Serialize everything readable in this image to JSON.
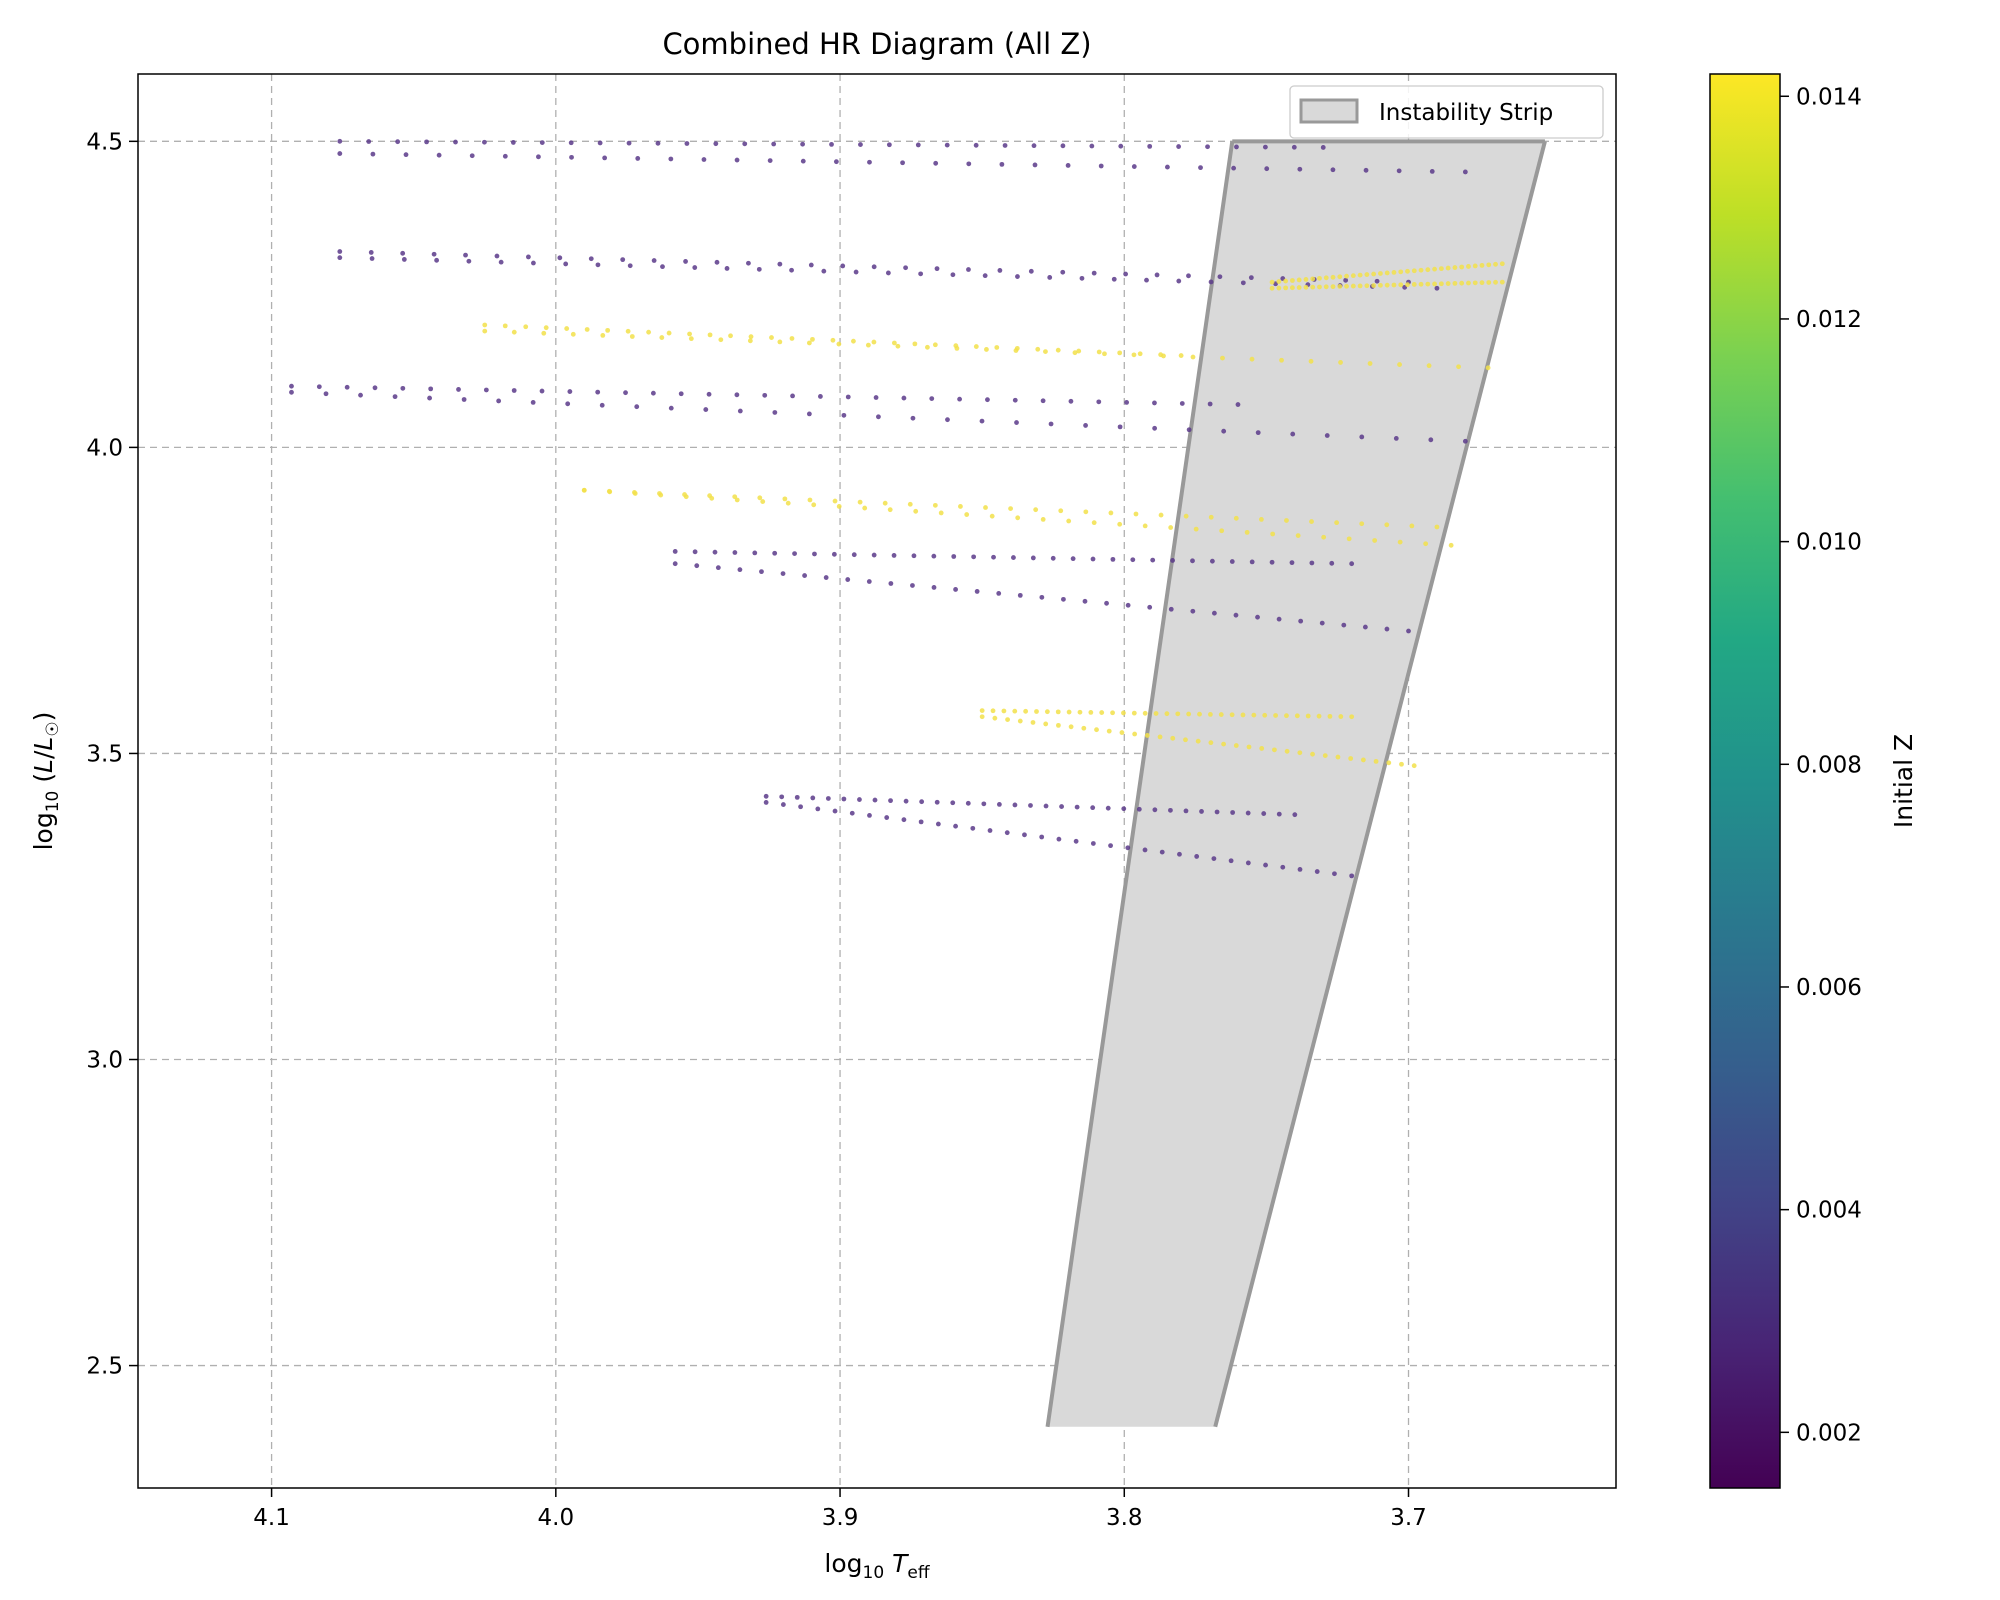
{
  "chart_data": {
    "type": "scatter",
    "title": "Combined HR Diagram (All Z)",
    "xlabel": "log₁₀ T_eff",
    "ylabel": "log₁₀ (L/L☉)",
    "x_inverted": true,
    "xlim": [
      4.147,
      3.627
    ],
    "ylim": [
      2.3,
      4.61
    ],
    "xticks": [
      4.1,
      4.0,
      3.9,
      3.8,
      3.7
    ],
    "yticks": [
      2.5,
      3.0,
      3.5,
      4.0,
      4.5
    ],
    "xtick_labels": [
      "4.1",
      "4.0",
      "3.9",
      "3.8",
      "3.7"
    ],
    "ytick_labels": [
      "2.5",
      "3.0",
      "3.5",
      "4.0",
      "4.5"
    ],
    "grid": true,
    "legend": {
      "label": "Instability Strip",
      "placement": "top-right"
    },
    "colorbar": {
      "label": "Initial Z",
      "min": 0.0015,
      "max": 0.0142,
      "ticks": [
        0.002,
        0.004,
        0.006,
        0.008,
        0.01,
        0.012,
        0.014
      ],
      "tick_labels": [
        "0.002",
        "0.004",
        "0.006",
        "0.008",
        "0.010",
        "0.012",
        "0.014"
      ],
      "colormap": "viridis"
    },
    "instability_strip": {
      "blue_edge": [
        [
          3.762,
          4.5
        ],
        [
          3.827,
          2.4
        ]
      ],
      "red_edge": [
        [
          3.652,
          4.5
        ],
        [
          3.768,
          2.4
        ]
      ],
      "fill_color": "#d9d9d9",
      "edge_color": "#999999"
    },
    "series": [
      {
        "z": 0.0015,
        "color": "#5b3a8a",
        "tracks": [
          {
            "upper": {
              "x_start": 4.076,
              "x_end": 3.73,
              "y_start": 4.5,
              "y_end": 4.49
            },
            "lower": {
              "x_start": 4.076,
              "x_end": 3.68,
              "y_start": 4.48,
              "y_end": 4.45
            }
          },
          {
            "upper": {
              "x_start": 4.076,
              "x_end": 3.7,
              "y_start": 4.32,
              "y_end": 4.27
            },
            "lower": {
              "x_start": 4.076,
              "x_end": 3.69,
              "y_start": 4.31,
              "y_end": 4.26
            }
          },
          {
            "upper": {
              "x_start": 4.093,
              "x_end": 3.76,
              "y_start": 4.1,
              "y_end": 4.07
            },
            "lower": {
              "x_start": 4.093,
              "x_end": 3.68,
              "y_start": 4.09,
              "y_end": 4.01
            }
          },
          {
            "upper": {
              "x_start": 3.958,
              "x_end": 3.72,
              "y_start": 3.83,
              "y_end": 3.81
            },
            "lower": {
              "x_start": 3.958,
              "x_end": 3.7,
              "y_start": 3.81,
              "y_end": 3.7
            }
          },
          {
            "upper": {
              "x_start": 3.926,
              "x_end": 3.74,
              "y_start": 3.43,
              "y_end": 3.4
            },
            "lower": {
              "x_start": 3.926,
              "x_end": 3.72,
              "y_start": 3.42,
              "y_end": 3.3
            }
          }
        ]
      },
      {
        "z": 0.0142,
        "color": "#f2e04a",
        "tracks": [
          {
            "upper": {
              "x_start": 3.748,
              "x_end": 3.667,
              "y_start": 4.27,
              "y_end": 4.3
            },
            "lower": {
              "x_start": 3.748,
              "x_end": 3.667,
              "y_start": 4.26,
              "y_end": 4.27
            }
          },
          {
            "upper": {
              "x_start": 4.025,
              "x_end": 3.78,
              "y_start": 4.2,
              "y_end": 4.15
            },
            "lower": {
              "x_start": 4.025,
              "x_end": 3.672,
              "y_start": 4.19,
              "y_end": 4.13
            }
          },
          {
            "upper": {
              "x_start": 3.99,
              "x_end": 3.69,
              "y_start": 3.93,
              "y_end": 3.87
            },
            "lower": {
              "x_start": 3.99,
              "x_end": 3.685,
              "y_start": 3.93,
              "y_end": 3.84
            }
          },
          {
            "upper": {
              "x_start": 3.85,
              "x_end": 3.72,
              "y_start": 3.57,
              "y_end": 3.56
            },
            "lower": {
              "x_start": 3.85,
              "x_end": 3.698,
              "y_start": 3.56,
              "y_end": 3.48
            }
          }
        ]
      }
    ]
  }
}
